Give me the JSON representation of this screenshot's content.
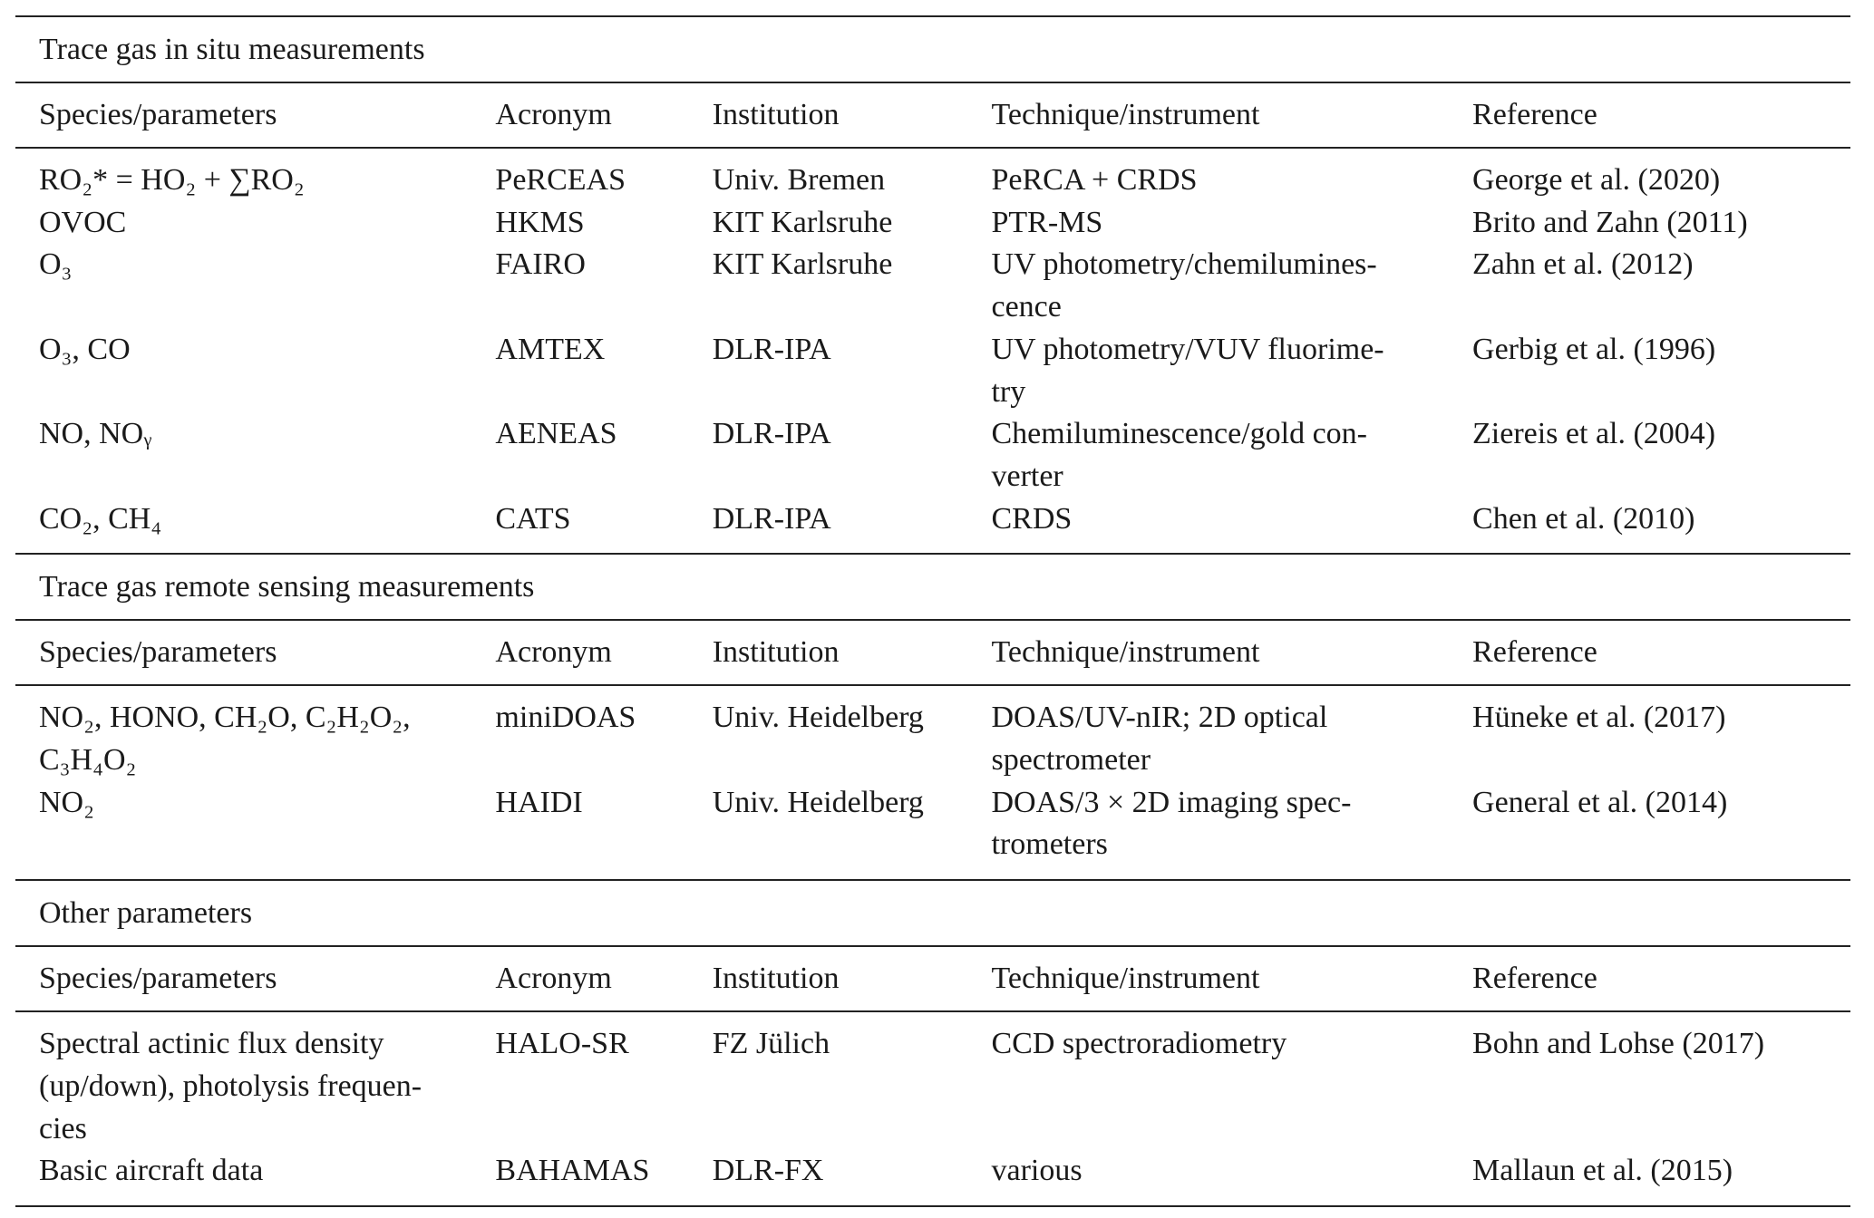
{
  "columns": [
    "Species/parameters",
    "Acronym",
    "Institution",
    "Technique/instrument",
    "Reference"
  ],
  "sections": [
    {
      "title": "Trace gas in situ measurements",
      "rows": [
        {
          "species": "RO₂* = HO₂ + ∑RO₂",
          "acronym": "PeRCEAS",
          "institution": "Univ. Bremen",
          "technique": "PeRCA + CRDS",
          "reference": "George et al. (2020)"
        },
        {
          "species": "OVOC",
          "acronym": "HKMS",
          "institution": "KIT Karlsruhe",
          "technique": "PTR-MS",
          "reference": "Brito and Zahn (2011)"
        },
        {
          "species": "O₃",
          "acronym": "FAIRO",
          "institution": "KIT Karlsruhe",
          "technique": "UV photometry/chemilumines-\ncence",
          "reference": "Zahn et al. (2012)"
        },
        {
          "species": "O₃, CO",
          "acronym": "AMTEX",
          "institution": "DLR-IPA",
          "technique": "UV photometry/VUV fluorime-\ntry",
          "reference": "Gerbig et al. (1996)"
        },
        {
          "species": "NO, NOᵧ",
          "acronym": "AENEAS",
          "institution": "DLR-IPA",
          "technique": "Chemiluminescence/gold con-\nverter",
          "reference": "Ziereis et al. (2004)"
        },
        {
          "species": "CO₂, CH₄",
          "acronym": "CATS",
          "institution": "DLR-IPA",
          "technique": "CRDS",
          "reference": "Chen et al. (2010)"
        }
      ]
    },
    {
      "title": "Trace gas remote sensing measurements",
      "rows": [
        {
          "species": "NO₂, HONO, CH₂O, C₂H₂O₂,\nC₃H₄O₂",
          "acronym": "miniDOAS",
          "institution": "Univ. Heidelberg",
          "technique": "DOAS/UV-nIR;  2D  optical\nspectrometer",
          "reference": "Hüneke et al. (2017)"
        },
        {
          "species": "NO₂",
          "acronym": "HAIDI",
          "institution": "Univ. Heidelberg",
          "technique": "DOAS/3 × 2D  imaging  spec-\ntrometers",
          "reference": "General et al. (2014)"
        }
      ]
    },
    {
      "title": "Other parameters",
      "rows": [
        {
          "species": "Spectral  actinic  flux  density\n(up/down), photolysis frequen-\ncies",
          "acronym": "HALO-SR",
          "institution": "FZ Jülich",
          "technique": "CCD spectroradiometry",
          "reference": "Bohn and Lohse (2017)"
        },
        {
          "species": "Basic aircraft data",
          "acronym": "BAHAMAS",
          "institution": "DLR-FX",
          "technique": "various",
          "reference": "Mallaun et al. (2015)"
        }
      ]
    }
  ]
}
